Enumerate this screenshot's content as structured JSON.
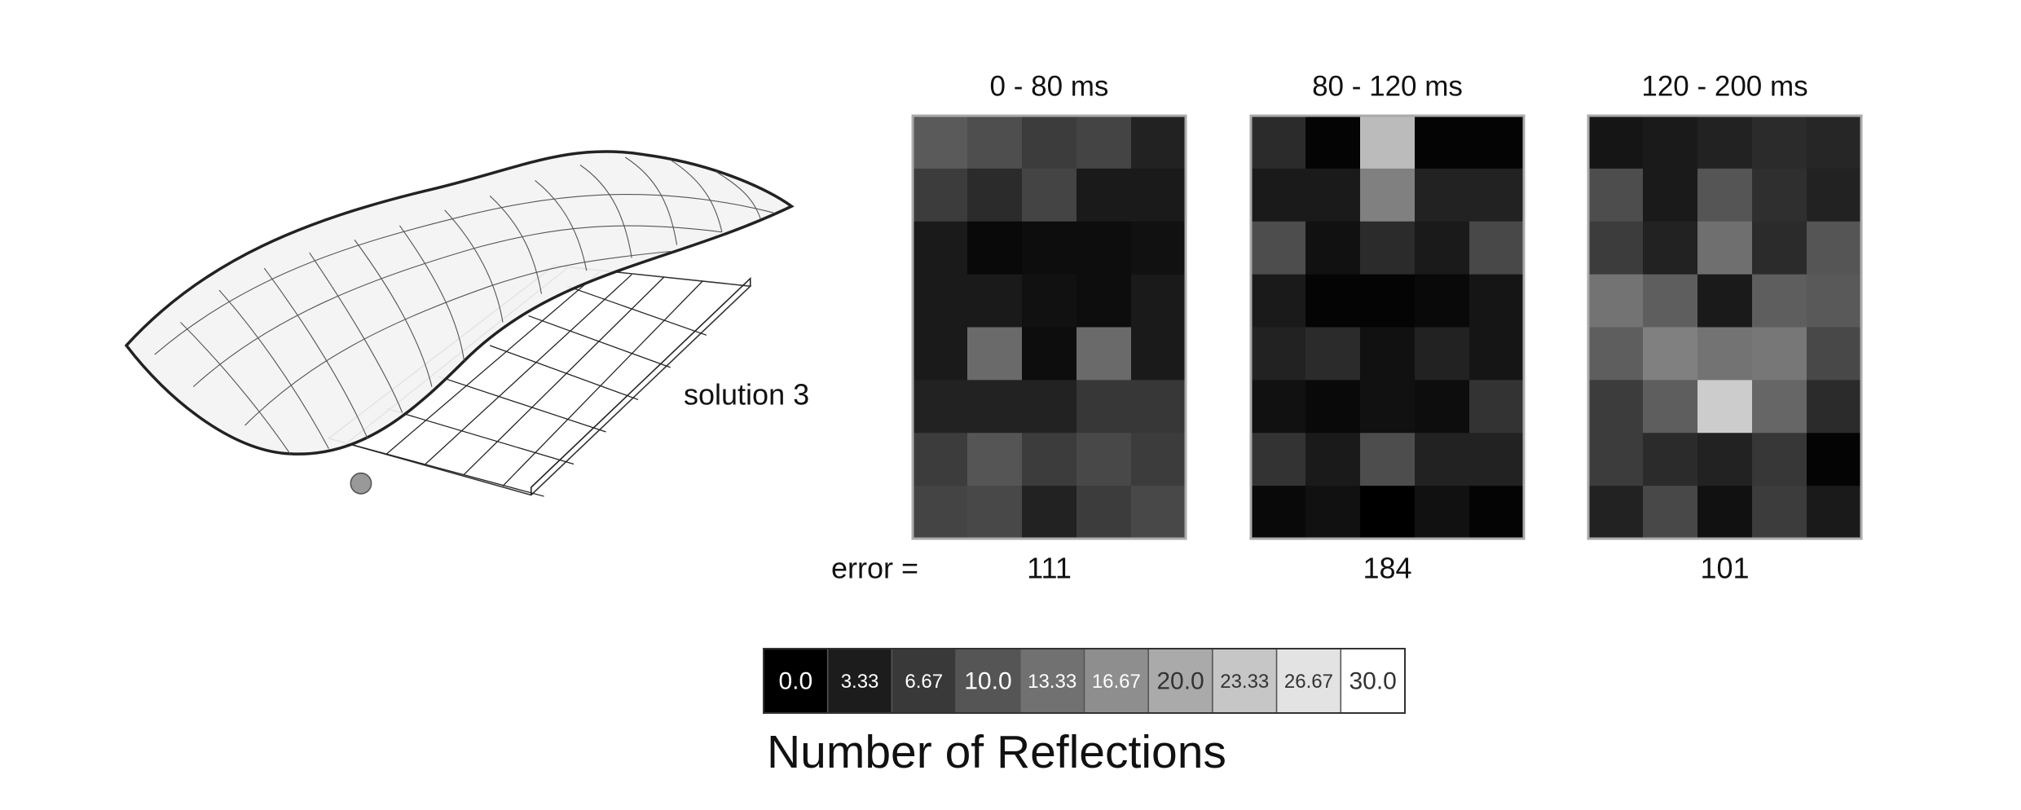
{
  "chart_data": [
    {
      "type": "heatmap",
      "title": "0 - 80 ms",
      "error": 111,
      "values": [
        [
          10.6,
          9.2,
          7.1,
          8,
          4
        ],
        [
          7,
          5,
          8,
          3,
          3
        ],
        [
          3,
          1,
          1.5,
          1.5,
          2
        ],
        [
          3,
          3,
          2,
          1.5,
          3
        ],
        [
          3,
          12.5,
          1.5,
          12.5,
          3
        ],
        [
          4,
          4,
          4,
          6.5,
          6.5
        ],
        [
          7,
          10,
          7,
          8.5,
          7
        ],
        [
          8,
          8.5,
          4,
          7,
          8.5
        ]
      ]
    },
    {
      "type": "heatmap",
      "title": "80 - 120 ms",
      "error": 184,
      "values": [
        [
          5,
          0.5,
          22,
          0.5,
          0.5
        ],
        [
          3,
          3,
          15,
          4,
          4
        ],
        [
          9,
          2,
          5,
          3,
          8.5
        ],
        [
          3,
          0.5,
          0.5,
          1,
          2.5
        ],
        [
          4,
          5,
          2,
          4,
          2.5
        ],
        [
          2,
          1,
          2,
          1.5,
          6
        ],
        [
          6,
          3,
          9,
          4,
          4
        ],
        [
          1,
          2,
          0,
          2,
          0.5
        ]
      ]
    },
    {
      "type": "heatmap",
      "title": "120 - 200 ms",
      "error": 101,
      "values": [
        [
          2.5,
          3,
          4,
          5,
          4.5
        ],
        [
          9,
          3,
          10,
          5.5,
          4
        ],
        [
          7,
          4,
          13,
          5,
          10
        ],
        [
          13.5,
          11,
          3,
          11,
          10.5
        ],
        [
          11,
          15,
          13.5,
          14,
          8.5
        ],
        [
          7,
          11,
          24,
          12,
          5
        ],
        [
          7,
          5,
          4,
          6.5,
          0.5
        ],
        [
          4,
          8.5,
          2,
          7,
          3
        ]
      ]
    }
  ],
  "solution_label": "solution 3",
  "error_label": "error =",
  "colorbar": {
    "title": "Number of Reflections",
    "lim": [
      0,
      30
    ],
    "ticks": [
      {
        "value": 0,
        "label": "0.0"
      },
      3.33,
      6.67,
      {
        "value": 10,
        "label": "10.0"
      },
      13.33,
      16.67,
      {
        "value": 20,
        "label": "20.0"
      },
      23.33,
      26.67,
      {
        "value": 30,
        "label": "30.0"
      }
    ]
  }
}
